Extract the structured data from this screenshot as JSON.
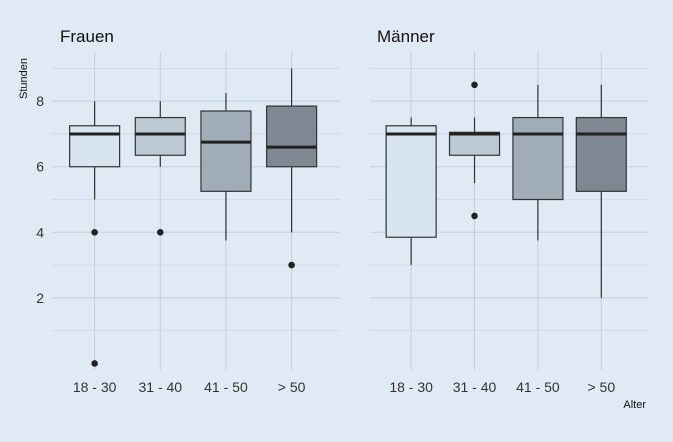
{
  "chart_data": [
    {
      "type": "box",
      "title": "Frauen",
      "ylabel": "Stunden",
      "xlabel": "",
      "categories": [
        "18 - 30",
        "31 - 40",
        "41 - 50",
        "> 50"
      ],
      "ylim": [
        -0.2,
        9.5
      ],
      "yticks": [
        2,
        4,
        6,
        8
      ],
      "grid": true,
      "colors": [
        "#d8e4ef",
        "#bdc9d5",
        "#a0acb8",
        "#7f8892"
      ],
      "boxes": [
        {
          "whisker_low": 5.0,
          "q1": 6.0,
          "median": 7.0,
          "q3": 7.25,
          "whisker_high": 8.0,
          "outliers": [
            4.0,
            0.0
          ]
        },
        {
          "whisker_low": 6.0,
          "q1": 6.35,
          "median": 7.0,
          "q3": 7.5,
          "whisker_high": 8.0,
          "outliers": [
            4.0
          ]
        },
        {
          "whisker_low": 3.75,
          "q1": 5.25,
          "median": 6.75,
          "q3": 7.7,
          "whisker_high": 8.25,
          "outliers": []
        },
        {
          "whisker_low": 4.0,
          "q1": 6.0,
          "median": 6.6,
          "q3": 7.85,
          "whisker_high": 9.0,
          "outliers": [
            3.0
          ]
        }
      ]
    },
    {
      "type": "box",
      "title": "Männer",
      "ylabel": "",
      "xlabel": "Alter",
      "categories": [
        "18 - 30",
        "31 - 40",
        "41 - 50",
        "> 50"
      ],
      "ylim": [
        -0.2,
        9.5
      ],
      "yticks": [
        2,
        4,
        6,
        8
      ],
      "grid": true,
      "colors": [
        "#d8e4ef",
        "#bdc9d5",
        "#a0acb8",
        "#7f8892"
      ],
      "boxes": [
        {
          "whisker_low": 3.0,
          "q1": 3.85,
          "median": 7.0,
          "q3": 7.25,
          "whisker_high": 7.5,
          "outliers": []
        },
        {
          "whisker_low": 5.5,
          "q1": 6.35,
          "median": 7.0,
          "q3": 7.05,
          "whisker_high": 7.5,
          "outliers": [
            8.5,
            4.5
          ]
        },
        {
          "whisker_low": 3.75,
          "q1": 5.0,
          "median": 7.0,
          "q3": 7.5,
          "whisker_high": 8.5,
          "outliers": []
        },
        {
          "whisker_low": 2.0,
          "q1": 5.25,
          "median": 7.0,
          "q3": 7.5,
          "whisker_high": 8.5,
          "outliers": []
        }
      ]
    }
  ]
}
